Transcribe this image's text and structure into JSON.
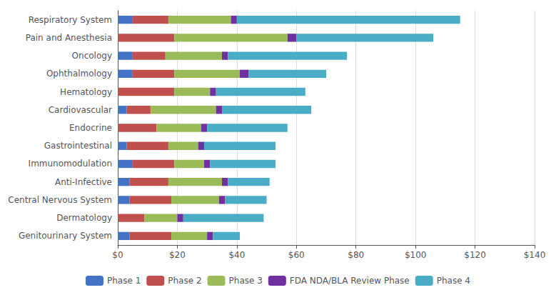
{
  "chart_data": {
    "type": "bar",
    "orientation": "horizontal",
    "stacked": true,
    "grid": true,
    "legend": "bottom",
    "categories": [
      "Respiratory System",
      "Pain and Anesthesia",
      "Oncology",
      "Ophthalmology",
      "Hematology",
      "Cardiovascular",
      "Endocrine",
      "Gastrointestinal",
      "Immunomodulation",
      "Anti-Infective",
      "Central Nervous System",
      "Dermatology",
      "Genitourinary System"
    ],
    "series": [
      {
        "name": "Phase 1",
        "color": "#4472C4",
        "values": [
          5,
          0,
          5,
          5,
          0,
          3,
          0,
          3,
          5,
          4,
          4,
          0,
          4
        ]
      },
      {
        "name": "Phase 2",
        "color": "#C0504D",
        "values": [
          12,
          19,
          11,
          14,
          19,
          8,
          13,
          14,
          14,
          13,
          14,
          9,
          14
        ]
      },
      {
        "name": "Phase 3",
        "color": "#9BBB59",
        "values": [
          21,
          38,
          19,
          22,
          12,
          22,
          15,
          10,
          10,
          18,
          16,
          11,
          12
        ]
      },
      {
        "name": "FDA NDA/BLA Review Phase",
        "color": "#7030A0",
        "values": [
          2,
          3,
          2,
          3,
          2,
          2,
          2,
          2,
          2,
          2,
          2,
          2,
          2
        ]
      },
      {
        "name": "Phase 4",
        "color": "#4BACC6",
        "values": [
          75,
          46,
          40,
          26,
          30,
          30,
          27,
          24,
          22,
          14,
          14,
          27,
          9
        ]
      }
    ],
    "xlim": [
      0,
      140
    ],
    "xticks": [
      {
        "value": 0,
        "label": "$0"
      },
      {
        "value": 20,
        "label": "$20"
      },
      {
        "value": 40,
        "label": "$40"
      },
      {
        "value": 60,
        "label": "$60"
      },
      {
        "value": 80,
        "label": "$80"
      },
      {
        "value": 100,
        "label": "$100"
      },
      {
        "value": 120,
        "label": "$120"
      },
      {
        "value": 140,
        "label": "$140"
      }
    ]
  }
}
